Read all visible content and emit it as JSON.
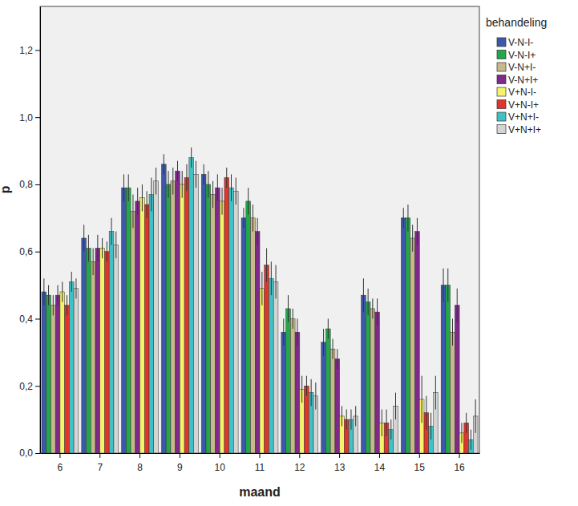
{
  "chart_data": {
    "type": "bar",
    "x_label": "maand",
    "y_label": "p",
    "legend_title": "behandeling",
    "legend": "right",
    "categories": [
      "6",
      "7",
      "8",
      "9",
      "10",
      "11",
      "12",
      "13",
      "14",
      "15",
      "16"
    ],
    "ylim": [
      0,
      1.33
    ],
    "yticks": [
      {
        "value": 0,
        "label": "0,0"
      },
      {
        "value": 0.2,
        "label": "0,2"
      },
      {
        "value": 0.4,
        "label": "0,4"
      },
      {
        "value": 0.6,
        "label": "0,6"
      },
      {
        "value": 0.8,
        "label": "0,8"
      },
      {
        "value": 1.0,
        "label": "1,0"
      },
      {
        "value": 1.2,
        "label": "1,2"
      }
    ],
    "series": [
      {
        "name": "V-N-I-",
        "color": "#3d57ab",
        "values": [
          0.48,
          0.64,
          0.79,
          0.86,
          0.83,
          0.7,
          0.36,
          0.33,
          0.47,
          0.7,
          0.5
        ],
        "errors": [
          0.04,
          0.04,
          0.04,
          0.03,
          0.03,
          0.03,
          0.04,
          0.04,
          0.05,
          0.03,
          0.05
        ]
      },
      {
        "name": "V-N-I+",
        "color": "#22a84b",
        "values": [
          0.47,
          0.61,
          0.79,
          0.8,
          0.8,
          0.75,
          0.43,
          0.37,
          0.45,
          0.7,
          0.5
        ],
        "errors": [
          0.03,
          0.04,
          0.04,
          0.04,
          0.04,
          0.04,
          0.04,
          0.03,
          0.04,
          0.04,
          0.05
        ]
      },
      {
        "name": "V-N+I-",
        "color": "#c8b98c",
        "values": [
          0.44,
          0.57,
          0.72,
          0.81,
          0.77,
          0.7,
          0.4,
          0.31,
          0.43,
          0.64,
          0.36
        ],
        "errors": [
          0.03,
          0.04,
          0.05,
          0.04,
          0.04,
          0.04,
          0.03,
          0.03,
          0.03,
          0.04,
          0.04
        ]
      },
      {
        "name": "V-N+I+",
        "color": "#7e2a8b",
        "values": [
          0.47,
          0.61,
          0.75,
          0.84,
          0.79,
          0.66,
          0.36,
          0.28,
          0.42,
          0.66,
          0.44
        ],
        "errors": [
          0.03,
          0.04,
          0.04,
          0.03,
          0.04,
          0.04,
          0.04,
          0.03,
          0.04,
          0.04,
          0.05
        ]
      },
      {
        "name": "V+N-I-",
        "color": "#f4f46a",
        "values": [
          0.48,
          0.61,
          0.76,
          0.8,
          0.75,
          0.49,
          0.19,
          0.11,
          0.09,
          0.16,
          0.06
        ],
        "errors": [
          0.03,
          0.03,
          0.04,
          0.04,
          0.04,
          0.05,
          0.04,
          0.03,
          0.04,
          0.07,
          0.03
        ]
      },
      {
        "name": "V+N-I+",
        "color": "#e0352b",
        "values": [
          0.44,
          0.6,
          0.74,
          0.82,
          0.82,
          0.56,
          0.2,
          0.1,
          0.09,
          0.12,
          0.09
        ],
        "errors": [
          0.03,
          0.03,
          0.04,
          0.04,
          0.03,
          0.05,
          0.03,
          0.03,
          0.04,
          0.05,
          0.03
        ]
      },
      {
        "name": "V+N+I-",
        "color": "#3fc2c6",
        "values": [
          0.51,
          0.66,
          0.77,
          0.88,
          0.79,
          0.52,
          0.18,
          0.1,
          0.07,
          0.08,
          0.04
        ],
        "errors": [
          0.03,
          0.04,
          0.05,
          0.03,
          0.04,
          0.05,
          0.04,
          0.03,
          0.03,
          0.04,
          0.03
        ]
      },
      {
        "name": "V+N+I+",
        "color": "#d4d4d4",
        "values": [
          0.49,
          0.62,
          0.81,
          0.83,
          0.78,
          0.51,
          0.17,
          0.11,
          0.14,
          0.18,
          0.11
        ],
        "errors": [
          0.03,
          0.04,
          0.04,
          0.04,
          0.04,
          0.05,
          0.04,
          0.03,
          0.04,
          0.05,
          0.05
        ]
      }
    ]
  }
}
